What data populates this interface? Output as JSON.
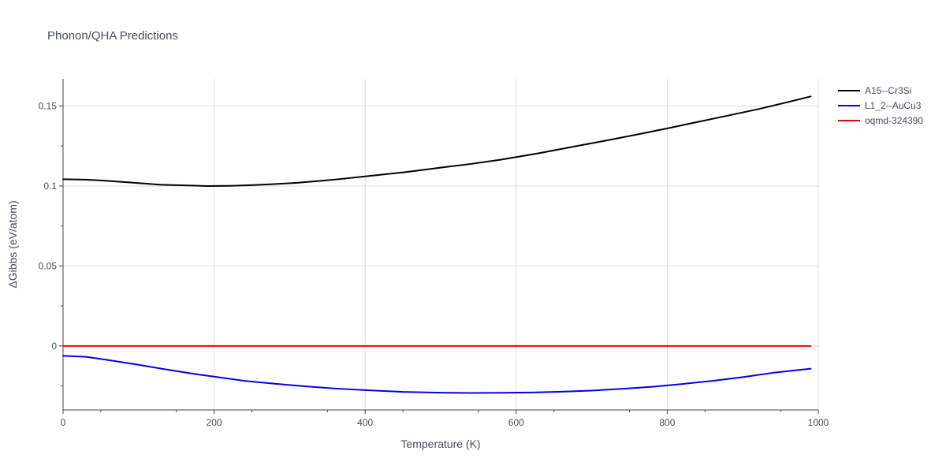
{
  "chart_data": {
    "type": "line",
    "title": "Phonon/QHA Predictions",
    "xlabel": "Temperature (K)",
    "ylabel": "ΔGibbs (eV/atom)",
    "xlim": [
      0,
      1000
    ],
    "ylim": [
      -0.04,
      0.167
    ],
    "x_ticks": [
      0,
      200,
      400,
      600,
      800,
      1000
    ],
    "x_tick_labels": [
      "0",
      "200",
      "400",
      "600",
      "800",
      "1000"
    ],
    "y_ticks": [
      0,
      0.05,
      0.1,
      0.15
    ],
    "y_tick_labels": [
      "0",
      "0.05",
      "0.1",
      "0.15"
    ],
    "x_grid": true,
    "y_grid": true,
    "legend_position": "top-right",
    "series": [
      {
        "name": "A15--Cr3Si",
        "color": "#000000",
        "x": [
          0,
          30,
          60,
          100,
          130,
          160,
          190,
          220,
          250,
          280,
          310,
          340,
          370,
          400,
          450,
          500,
          540,
          580,
          630,
          680,
          720,
          760,
          800,
          840,
          880,
          920,
          960,
          990
        ],
        "y": [
          0.1042,
          0.104,
          0.1032,
          0.1018,
          0.1008,
          0.1004,
          0.1,
          0.1001,
          0.1005,
          0.1012,
          0.102,
          0.1032,
          0.1045,
          0.106,
          0.1085,
          0.1115,
          0.1138,
          0.1165,
          0.1205,
          0.125,
          0.1285,
          0.1322,
          0.136,
          0.14,
          0.144,
          0.148,
          0.1525,
          0.156
        ]
      },
      {
        "name": "L1_2--AuCu3",
        "color": "#0000ee",
        "x": [
          0,
          30,
          60,
          100,
          130,
          170,
          200,
          240,
          280,
          320,
          360,
          400,
          450,
          500,
          540,
          580,
          620,
          660,
          700,
          740,
          780,
          820,
          860,
          900,
          940,
          990
        ],
        "y": [
          -0.0062,
          -0.0068,
          -0.0088,
          -0.0118,
          -0.0142,
          -0.0172,
          -0.0192,
          -0.0218,
          -0.0236,
          -0.0252,
          -0.0266,
          -0.0276,
          -0.0287,
          -0.0292,
          -0.0294,
          -0.0293,
          -0.0291,
          -0.0286,
          -0.0279,
          -0.0268,
          -0.0255,
          -0.0238,
          -0.0218,
          -0.0195,
          -0.0168,
          -0.0142
        ]
      },
      {
        "name": "oqmd-324390",
        "color": "#ee0000",
        "x": [
          0,
          990
        ],
        "y": [
          0,
          0
        ]
      }
    ]
  }
}
